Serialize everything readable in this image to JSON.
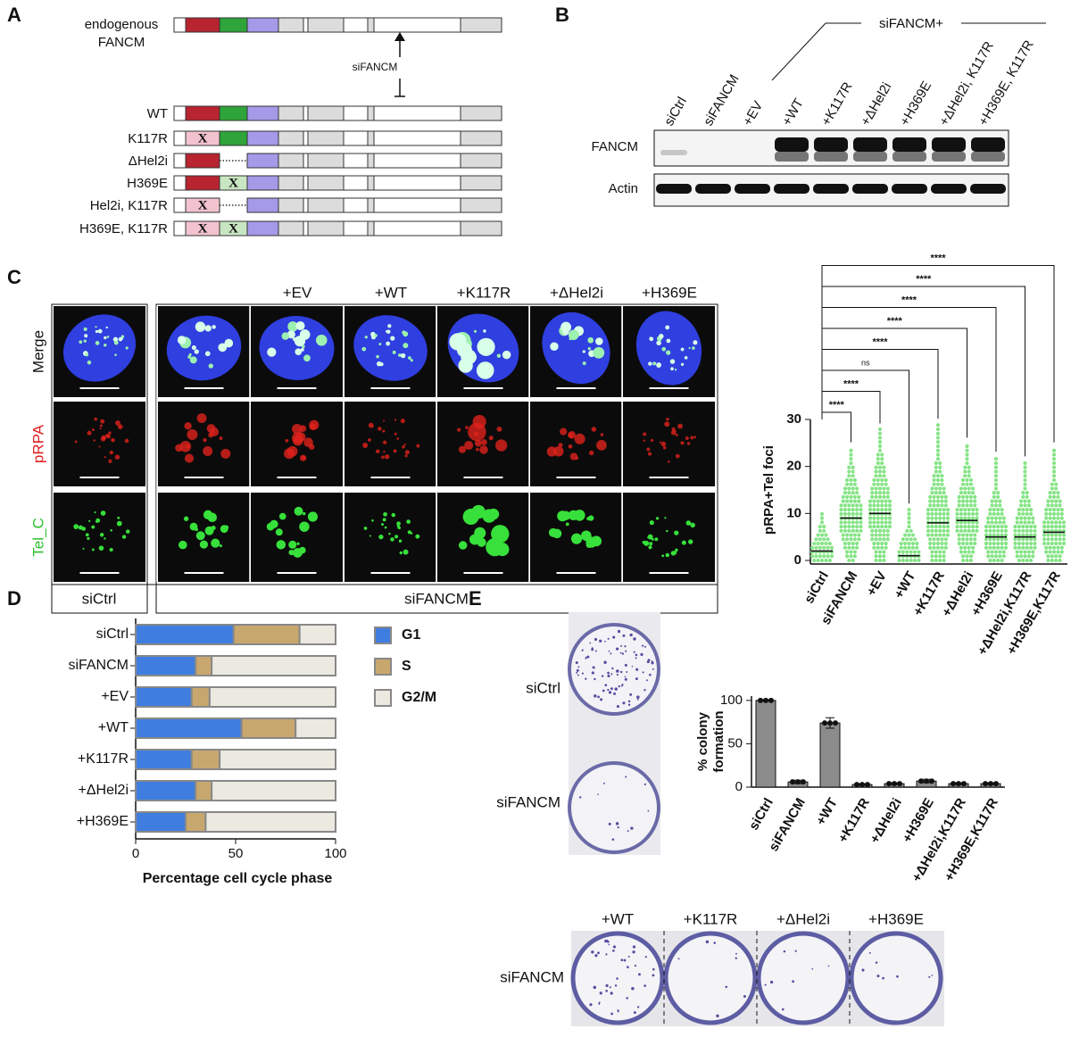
{
  "panels": {
    "A": {
      "label": "A",
      "endogenous": [
        "endogenous",
        "FANCM"
      ],
      "sirna": "siFANCM",
      "constructs": [
        "WT",
        "K117R",
        "ΔHel2i",
        "H369E",
        "Hel2i, K117R",
        "H369E, K117R"
      ],
      "mutation_mark": "X"
    },
    "B": {
      "label": "B",
      "group": "siFANCM+",
      "lanes": [
        "siCtrl",
        "siFANCM",
        "+EV",
        "+WT",
        "+K117R",
        "+ΔHel2i",
        "+H369E",
        "+ΔHel2i, K117R",
        "+H369E, K117R"
      ],
      "blots": [
        "FANCM",
        "Actin"
      ]
    },
    "C": {
      "label": "C",
      "columns": [
        "+EV",
        "+WT",
        "+K117R",
        "+ΔHel2i",
        "+H369E"
      ],
      "channels": [
        "Merge",
        "pRPA",
        "Tel_C"
      ],
      "groups": [
        "siCtrl",
        "siFANCM"
      ]
    },
    "D": {
      "label": "D"
    },
    "E": {
      "label": "E",
      "plates": [
        "siCtrl",
        "siFANCM"
      ],
      "rescue_columns": [
        "+WT",
        "+K117R",
        "+ΔHel2i",
        "+H369E"
      ],
      "rescue_row": "siFANCM"
    }
  },
  "chart_data": [
    {
      "type": "dot",
      "ylabel": "pRPA+Tel foci",
      "categories": [
        "siCtrl",
        "siFANCM",
        "+EV",
        "+WT",
        "+K117R",
        "+ΔHel2i",
        "+H369E",
        "+ΔHel2i,K117R",
        "+H369E,K117R"
      ],
      "medians": [
        2,
        9,
        10,
        1,
        8,
        8.5,
        5,
        5,
        6
      ],
      "maxima": [
        10,
        24,
        28,
        11,
        29,
        25,
        22,
        21,
        24
      ],
      "significance": [
        "****",
        "****",
        "ns",
        "****",
        "****",
        "****",
        "****",
        "****"
      ],
      "color": "#86e486",
      "ylim": [
        0,
        30
      ],
      "yticks": [
        0,
        10,
        20,
        30
      ]
    },
    {
      "type": "stacked-barh",
      "xlabel": "Percentage cell cycle phase",
      "categories": [
        "siCtrl",
        "siFANCM",
        "+EV",
        "+WT",
        "+K117R",
        "+ΔHel2i",
        "+H369E"
      ],
      "series": [
        {
          "name": "G1",
          "color": "#3f7ee0",
          "values": [
            49,
            30,
            28,
            53,
            28,
            30,
            25
          ]
        },
        {
          "name": "S",
          "color": "#c8a76e",
          "values": [
            33,
            8,
            9,
            27,
            14,
            8,
            10
          ]
        },
        {
          "name": "G2/M",
          "color": "#ece9e1",
          "values": [
            18,
            62,
            63,
            20,
            58,
            62,
            65
          ]
        }
      ],
      "xlim": [
        0,
        100
      ],
      "xticks": [
        0,
        50,
        100
      ]
    },
    {
      "type": "bar",
      "ylabel": [
        "% colony",
        "formation"
      ],
      "categories": [
        "siCtrl",
        "siFANCM",
        "+WT",
        "+K117R",
        "+ΔHel2i",
        "+H369E",
        "+ΔHel2i,K117R",
        "+H369E,K117R"
      ],
      "values": [
        100,
        6,
        74,
        3,
        4,
        7,
        4,
        4
      ],
      "errors": [
        1,
        2,
        6,
        1,
        1,
        2,
        1,
        1
      ],
      "color": "#8c8c8c",
      "ylim": [
        0,
        105
      ],
      "yticks": [
        0,
        50,
        100
      ]
    }
  ]
}
